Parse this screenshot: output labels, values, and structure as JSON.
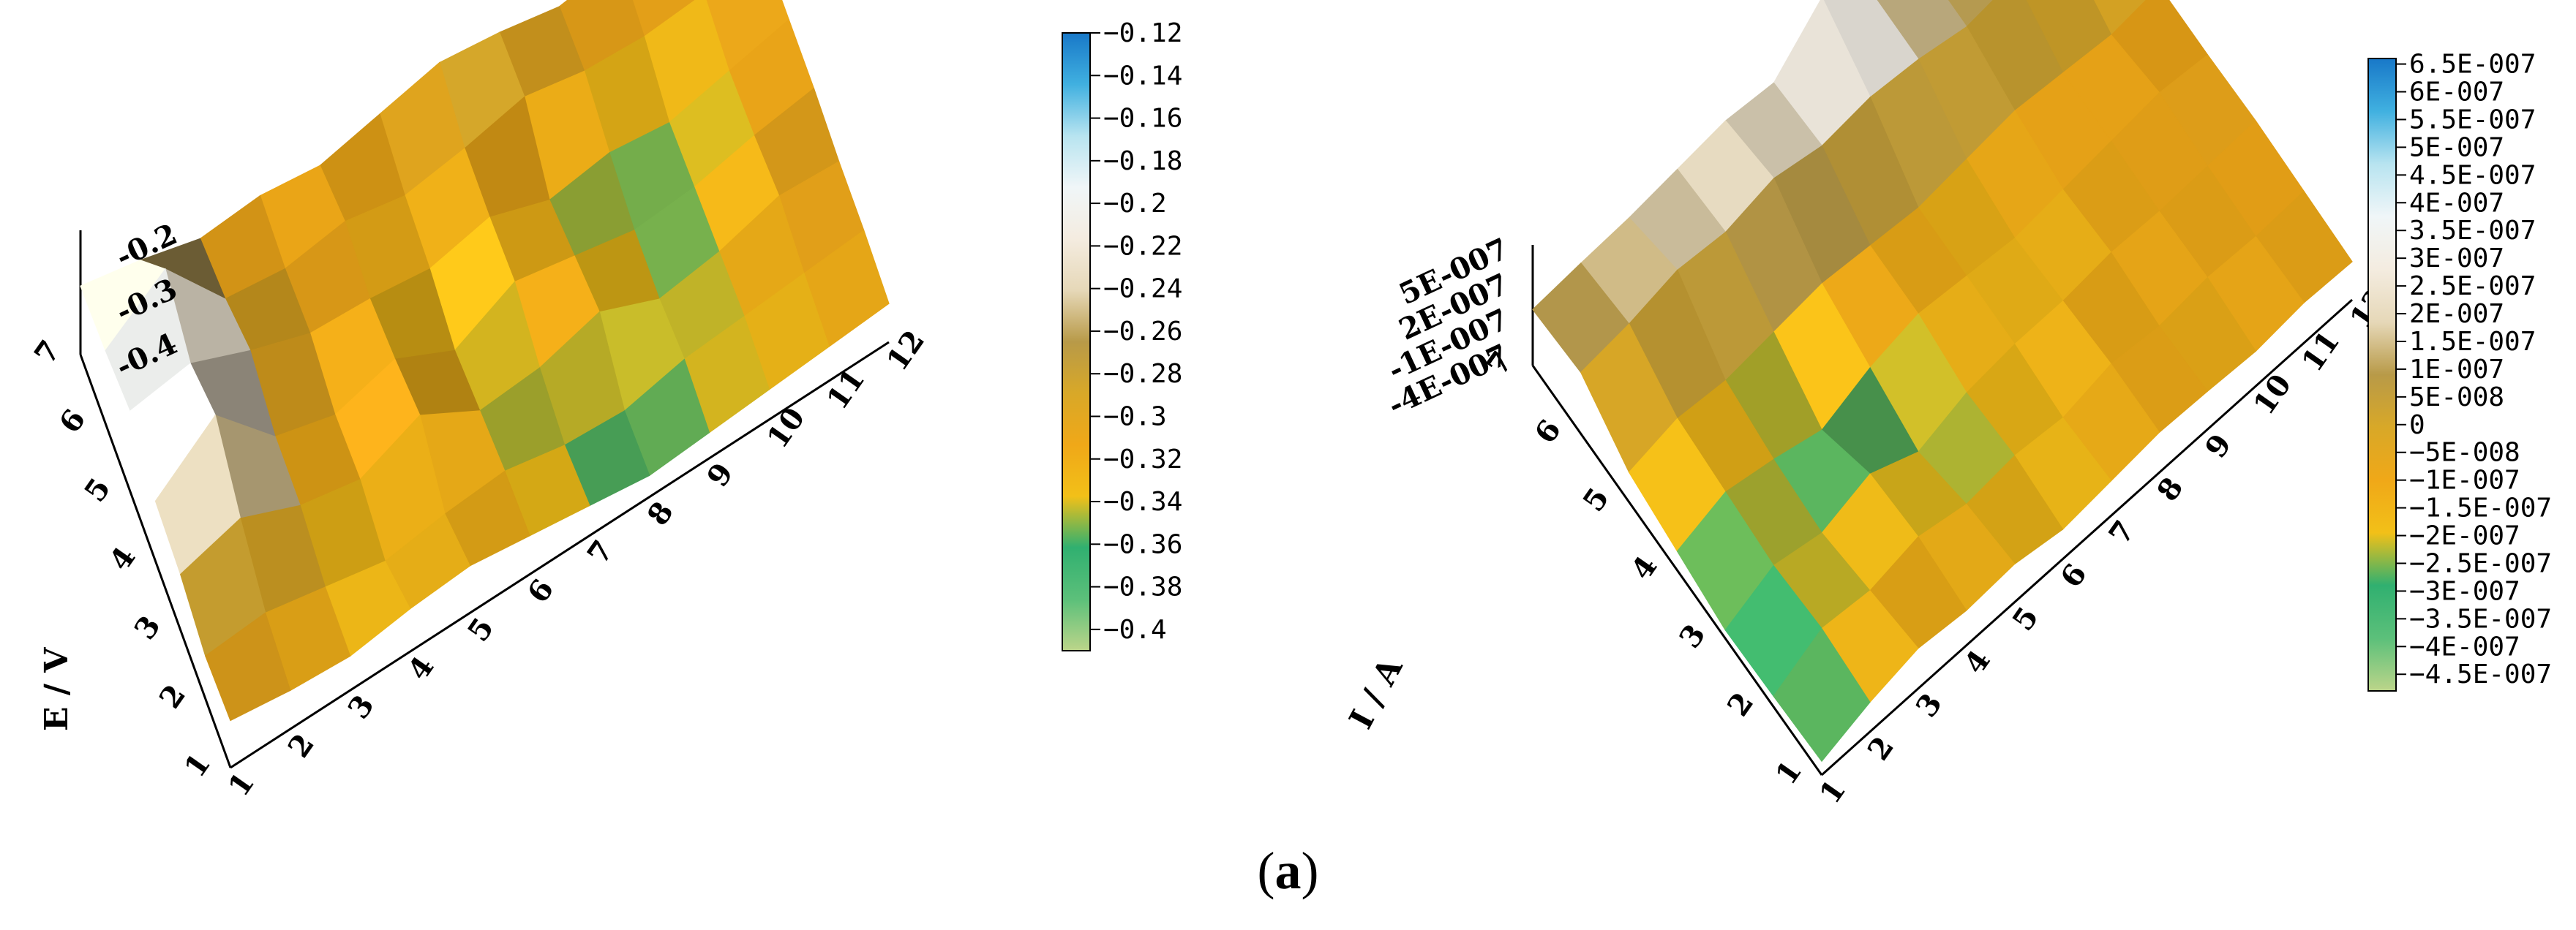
{
  "caption": {
    "open": "(",
    "letter": "a",
    "close": ")"
  },
  "palette": [
    "#bcd58a",
    "#5cc07a",
    "#30b070",
    "#f2c018",
    "#f0a818",
    "#d8a828",
    "#b89a48",
    "#e6d8b8",
    "#f4ece0",
    "#f0f6f8",
    "#b8e4f0",
    "#40b0e0",
    "#1878c8"
  ],
  "chart_data": [
    {
      "type": "surface",
      "name_hint": "left",
      "zlabel": "E / V",
      "x_ticks": [
        "1",
        "2",
        "3",
        "4",
        "5",
        "6",
        "7",
        "8",
        "9",
        "10",
        "11",
        "12"
      ],
      "y_ticks": [
        "1",
        "2",
        "3",
        "4",
        "5",
        "6",
        "7"
      ],
      "z_ticks": [
        "-0.2",
        "-0.3",
        "-0.4"
      ],
      "colorbar": {
        "ticks": [
          "-0.12",
          "-0.14",
          "-0.16",
          "-0.18",
          "-0.2",
          "-0.22",
          "-0.24",
          "-0.26",
          "-0.28",
          "-0.3",
          "-0.32",
          "-0.34",
          "-0.36",
          "-0.38",
          "-0.4"
        ],
        "range": [
          -0.41,
          -0.12
        ]
      },
      "zlim": [
        -0.41,
        -0.12
      ],
      "z_grid": [
        [
          -0.3,
          -0.32,
          -0.33,
          -0.31,
          -0.3,
          -0.32,
          -0.34,
          -0.36,
          -0.35,
          -0.34,
          -0.33,
          -0.32
        ],
        [
          -0.31,
          -0.3,
          -0.33,
          -0.36,
          -0.34,
          -0.33,
          -0.36,
          -0.37,
          -0.34,
          -0.33,
          -0.32,
          -0.31
        ],
        [
          -0.28,
          -0.24,
          -0.3,
          -0.33,
          -0.27,
          -0.35,
          -0.34,
          -0.3,
          -0.36,
          -0.34,
          -0.3,
          -0.31
        ],
        [
          -0.27,
          -0.16,
          -0.3,
          -0.34,
          -0.3,
          -0.37,
          -0.3,
          -0.33,
          -0.36,
          -0.35,
          -0.32,
          -0.3
        ],
        [
          -0.22,
          -0.2,
          -0.26,
          -0.31,
          -0.32,
          -0.34,
          -0.31,
          -0.36,
          -0.34,
          -0.36,
          -0.33,
          -0.3
        ],
        [
          -0.24,
          -0.14,
          -0.3,
          -0.32,
          -0.3,
          -0.33,
          -0.31,
          -0.28,
          -0.31,
          -0.32,
          -0.31,
          -0.3
        ],
        [
          -0.25,
          -0.28,
          -0.32,
          -0.31,
          -0.33,
          -0.3,
          -0.27,
          -0.29,
          -0.32,
          -0.3,
          -0.32,
          -0.33
        ]
      ]
    },
    {
      "type": "surface",
      "name_hint": "right",
      "zlabel": "I / A",
      "x_ticks": [
        "1",
        "2",
        "3",
        "4",
        "5",
        "6",
        "7",
        "8",
        "9",
        "10",
        "11",
        "12"
      ],
      "y_ticks": [
        "1",
        "2",
        "3",
        "4",
        "5",
        "6",
        "7"
      ],
      "z_ticks": [
        "5E-007",
        "2E-007",
        "-1E-007",
        "-4E-007"
      ],
      "colorbar": {
        "ticks": [
          "6.5E-007",
          "6E-007",
          "5.5E-007",
          "5E-007",
          "4.5E-007",
          "4E-007",
          "3.5E-007",
          "3E-007",
          "2.5E-007",
          "2E-007",
          "1.5E-007",
          "1E-007",
          "5E-008",
          "0",
          "-5E-008",
          "-1E-007",
          "-1.5E-007",
          "-2E-007",
          "-2.5E-007",
          "-3E-007",
          "-3.5E-007",
          "-4E-007",
          "-4.5E-007"
        ],
        "range": [
          -4.8e-07,
          6.6e-07
        ]
      },
      "zlim": [
        -4.8e-07,
        6.6e-07
      ],
      "z_grid": [
        [
          -3.5e-07,
          -2e-07,
          -1e-07,
          -1.5e-07,
          -1.2e-07,
          -2e-07,
          -1.5e-07,
          -1e-07,
          -1.2e-07,
          -1.5e-07,
          -1e-07,
          -1.2e-07
        ],
        [
          -3.8e-07,
          -1.5e-07,
          -2e-07,
          -1e-07,
          -2e-07,
          -1.5e-07,
          -2e-07,
          -1e-07,
          -1.5e-07,
          -1e-07,
          -1.2e-07,
          -1e-07
        ],
        [
          -4e-07,
          -2e-07,
          -3e-07,
          -1.5e-07,
          -3.5e-07,
          -2e-07,
          -1.5e-07,
          -1.5e-07,
          -1e-07,
          -1.2e-07,
          -1e-07,
          -8e-08
        ],
        [
          -3e-07,
          -1.5e-07,
          -2.5e-07,
          -3.8e-07,
          -2e-07,
          -1e-07,
          -1.5e-07,
          -2e-07,
          -1.5e-07,
          -1e-07,
          -5e-08,
          -1e-07
        ],
        [
          -2e-07,
          -1e-07,
          -1.5e-07,
          -1e-07,
          -5e-08,
          -1e-07,
          -1.5e-07,
          -1e-07,
          -5e-08,
          -1e-07,
          -1.5e-07,
          -1e-07
        ],
        [
          1e-07,
          1.5e-07,
          2.5e-07,
          2e-07,
          3e-07,
          2e-07,
          2.5e-07,
          2e-07,
          1e-07,
          1.5e-07,
          1e-07,
          5e-08
        ],
        [
          5e-08,
          8e-08,
          1e-07,
          1.5e-07,
          2e-07,
          1.5e-07,
          5.5e-07,
          2e-07,
          1e-07,
          5e-08,
          1e-07,
          -5e-08
        ]
      ]
    }
  ]
}
